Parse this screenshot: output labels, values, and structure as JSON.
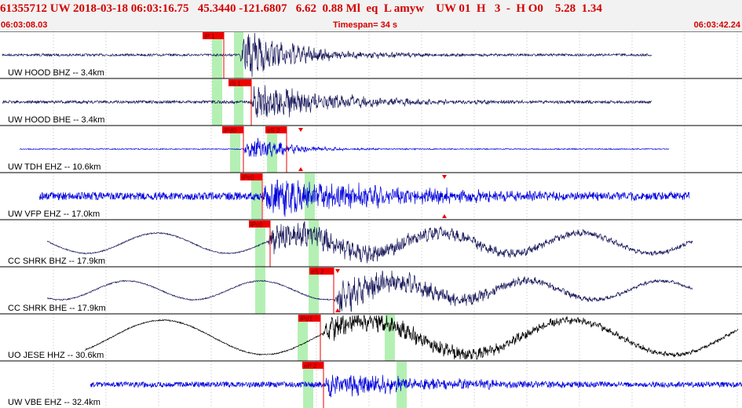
{
  "header": {
    "event_line": "61355712 UW 2018-03-18 06:03:16.75   45.3440 -121.6807   6.62  0.88 Ml  eq  L amyw    UW 01  H   3  -  H O0    5.28  1.34",
    "start_time": "06:03:08.03",
    "timespan": "Timespan=  34 s",
    "end_time": "06:03:42.24"
  },
  "colors": {
    "header_text": "#d40000",
    "pick_marker": "#ee0000",
    "phase_band": "#b4f0b4",
    "trace_dark": "#1a1a5c",
    "trace_blue": "#0000dd",
    "trace_black": "#000000",
    "grid": "#9a9a9a"
  },
  "panels": [
    {
      "label": "UW HOOD BHZ -- 3.4km",
      "trace": "dark",
      "picks": [
        "iP 1"
      ],
      "triangles": []
    },
    {
      "label": "UW HOOD BHE -- 3.4km",
      "trace": "dark",
      "picks": [
        "iS 1"
      ],
      "triangles": []
    },
    {
      "label": "UW TDH EHZ -- 10.6km",
      "trace": "blue",
      "picks": [
        "iPd0",
        "eS 2"
      ],
      "triangles": [
        "down",
        "up"
      ]
    },
    {
      "label": "UW VFP EHZ -- 17.0km",
      "trace": "blue",
      "picks": [
        "iPc0"
      ],
      "triangles": [
        "down",
        "up"
      ]
    },
    {
      "label": "CC SHRK BHZ -- 17.9km",
      "trace": "dark",
      "picks": [
        "iPc0"
      ],
      "triangles": []
    },
    {
      "label": "CC SHRK BHE -- 17.9km",
      "trace": "dark",
      "picks": [
        "eS 2"
      ],
      "triangles": [
        "down",
        "up"
      ]
    },
    {
      "label": "UO JESE HHZ -- 30.6km",
      "trace": "black",
      "picks": [
        "iPd1"
      ],
      "triangles": []
    },
    {
      "label": "UW VBE EHZ -- 32.4km",
      "trace": "blue",
      "picks": [
        "eP 2"
      ],
      "triangles": []
    }
  ]
}
